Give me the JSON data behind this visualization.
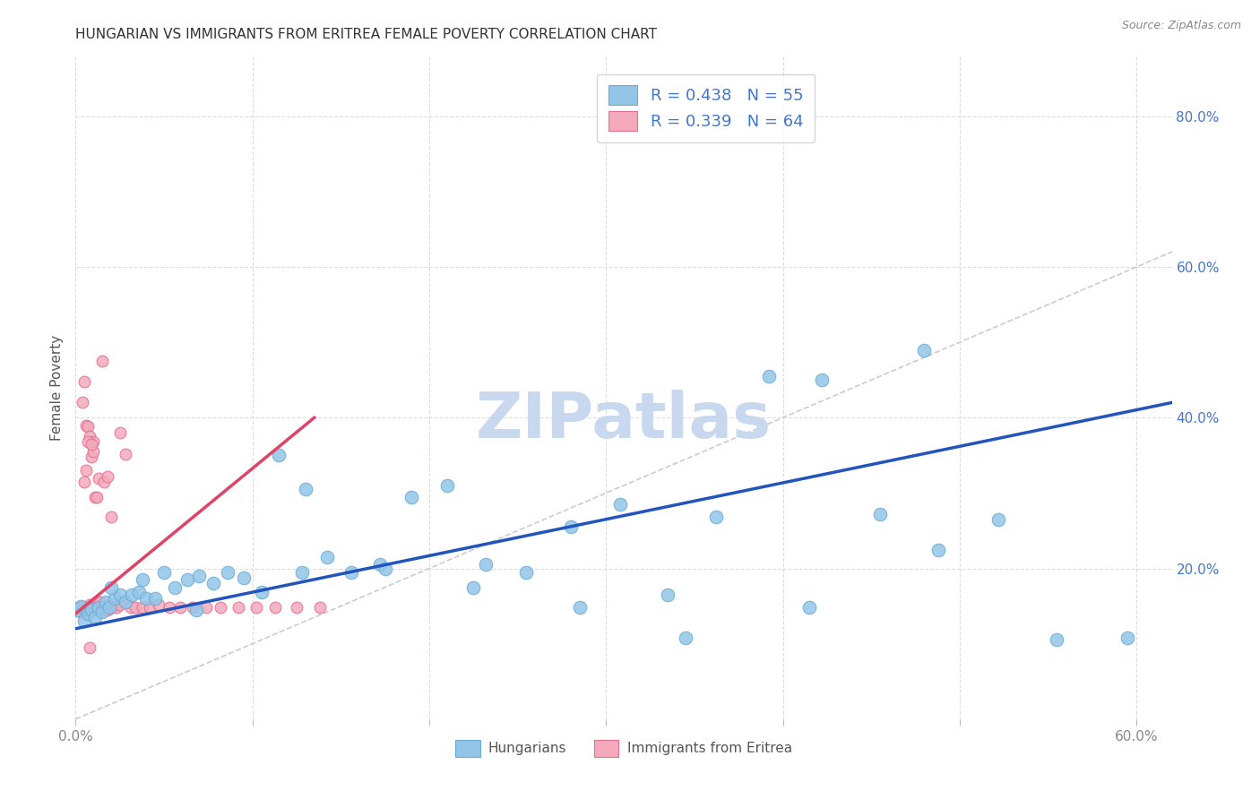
{
  "title": "HUNGARIAN VS IMMIGRANTS FROM ERITREA FEMALE POVERTY CORRELATION CHART",
  "source": "Source: ZipAtlas.com",
  "ylabel": "Female Poverty",
  "xlim": [
    0.0,
    0.62
  ],
  "ylim": [
    0.0,
    0.88
  ],
  "xticks": [
    0.0,
    0.1,
    0.2,
    0.3,
    0.4,
    0.5,
    0.6
  ],
  "xtick_labels": [
    "0.0%",
    "",
    "",
    "",
    "",
    "",
    "60.0%"
  ],
  "yticks": [
    0.0,
    0.2,
    0.4,
    0.6,
    0.8
  ],
  "ytick_right_labels": [
    "",
    "20.0%",
    "40.0%",
    "60.0%",
    "80.0%"
  ],
  "legend1_label": "R = 0.438   N = 55",
  "legend2_label": "R = 0.339   N = 64",
  "legend_group1": "Hungarians",
  "legend_group2": "Immigrants from Eritrea",
  "blue_color": "#92C5E8",
  "blue_edge_color": "#6BACD4",
  "pink_color": "#F4AABB",
  "pink_edge_color": "#E07090",
  "trend_blue": "#2255BB",
  "trend_pink": "#DD4466",
  "ref_line_color": "#CCCCCC",
  "watermark_color": "#C8D8EE",
  "label_color_blue": "#4477CC",
  "tick_color_right": "#4477CC",
  "title_color": "#333333",
  "ylabel_color": "#555555",
  "background_color": "#FFFFFF",
  "grid_color": "#DDDDDD",
  "blue_x": [
    0.001,
    0.003,
    0.005,
    0.007,
    0.009,
    0.011,
    0.013,
    0.015,
    0.017,
    0.019,
    0.022,
    0.025,
    0.028,
    0.032,
    0.036,
    0.04,
    0.045,
    0.05,
    0.056,
    0.063,
    0.07,
    0.078,
    0.086,
    0.095,
    0.105,
    0.115,
    0.128,
    0.142,
    0.156,
    0.172,
    0.19,
    0.21,
    0.232,
    0.255,
    0.28,
    0.308,
    0.335,
    0.362,
    0.392,
    0.422,
    0.455,
    0.488,
    0.522,
    0.555,
    0.595,
    0.02,
    0.038,
    0.068,
    0.13,
    0.175,
    0.225,
    0.285,
    0.345,
    0.415,
    0.48
  ],
  "blue_y": [
    0.145,
    0.15,
    0.13,
    0.14,
    0.145,
    0.135,
    0.148,
    0.142,
    0.155,
    0.148,
    0.16,
    0.165,
    0.155,
    0.165,
    0.168,
    0.16,
    0.16,
    0.195,
    0.175,
    0.185,
    0.19,
    0.18,
    0.195,
    0.188,
    0.168,
    0.35,
    0.195,
    0.215,
    0.195,
    0.205,
    0.295,
    0.31,
    0.205,
    0.195,
    0.255,
    0.285,
    0.165,
    0.268,
    0.455,
    0.45,
    0.272,
    0.225,
    0.265,
    0.105,
    0.108,
    0.175,
    0.185,
    0.145,
    0.305,
    0.2,
    0.175,
    0.148,
    0.108,
    0.148,
    0.49
  ],
  "pink_x": [
    0.001,
    0.002,
    0.003,
    0.004,
    0.004,
    0.005,
    0.005,
    0.006,
    0.006,
    0.007,
    0.007,
    0.008,
    0.008,
    0.009,
    0.009,
    0.01,
    0.01,
    0.011,
    0.011,
    0.012,
    0.012,
    0.013,
    0.014,
    0.015,
    0.016,
    0.017,
    0.018,
    0.019,
    0.02,
    0.021,
    0.023,
    0.025,
    0.028,
    0.031,
    0.034,
    0.038,
    0.042,
    0.047,
    0.053,
    0.059,
    0.066,
    0.074,
    0.082,
    0.092,
    0.102,
    0.113,
    0.125,
    0.138,
    0.006,
    0.008,
    0.01,
    0.013,
    0.016,
    0.02,
    0.025,
    0.005,
    0.007,
    0.009,
    0.012,
    0.018,
    0.028,
    0.003,
    0.008,
    0.015
  ],
  "pink_y": [
    0.145,
    0.148,
    0.145,
    0.15,
    0.42,
    0.145,
    0.448,
    0.145,
    0.39,
    0.148,
    0.388,
    0.15,
    0.152,
    0.148,
    0.348,
    0.148,
    0.355,
    0.148,
    0.295,
    0.148,
    0.152,
    0.155,
    0.155,
    0.148,
    0.145,
    0.148,
    0.145,
    0.148,
    0.148,
    0.148,
    0.148,
    0.152,
    0.155,
    0.148,
    0.148,
    0.148,
    0.148,
    0.152,
    0.148,
    0.148,
    0.148,
    0.148,
    0.148,
    0.148,
    0.148,
    0.148,
    0.148,
    0.148,
    0.33,
    0.375,
    0.368,
    0.32,
    0.315,
    0.268,
    0.38,
    0.315,
    0.368,
    0.365,
    0.295,
    0.322,
    0.352,
    0.142,
    0.095,
    0.475
  ]
}
